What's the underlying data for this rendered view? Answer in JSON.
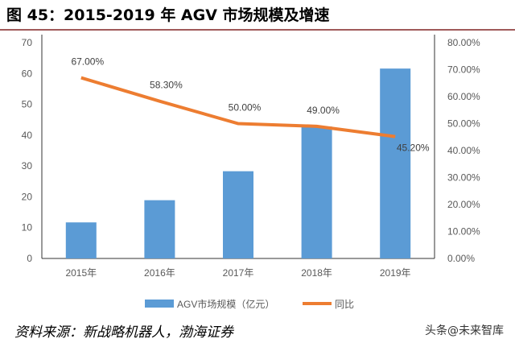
{
  "title": "图 45：2015-2019 年 AGV 市场规模及增速",
  "source": "资料来源：新战略机器人，渤海证券",
  "watermark": "头条@未来智库",
  "chart_data": {
    "type": "bar+line",
    "categories": [
      "2015年",
      "2016年",
      "2017年",
      "2018年",
      "2019年"
    ],
    "series": [
      {
        "name": "AGV市场规模（亿元）",
        "type": "bar",
        "axis": "left",
        "color": "#5b9bd5",
        "values": [
          11.7,
          18.9,
          28.3,
          42.8,
          61.6
        ]
      },
      {
        "name": "同比",
        "type": "line",
        "axis": "right",
        "color": "#ed7d31",
        "values": [
          67.0,
          58.3,
          50.0,
          49.0,
          45.2
        ],
        "labels": [
          "67.00%",
          "58.30%",
          "50.00%",
          "49.00%",
          "45.20%"
        ]
      }
    ],
    "left_axis": {
      "ylim": [
        0,
        70
      ],
      "ticks": [
        "0",
        "10",
        "20",
        "30",
        "40",
        "50",
        "60",
        "70"
      ]
    },
    "right_axis": {
      "ylim": [
        0,
        80
      ],
      "ticks": [
        "0.00%",
        "10.00%",
        "20.00%",
        "30.00%",
        "40.00%",
        "50.00%",
        "60.00%",
        "70.00%",
        "80.00%"
      ]
    },
    "grid": false,
    "legend": "bottom"
  }
}
